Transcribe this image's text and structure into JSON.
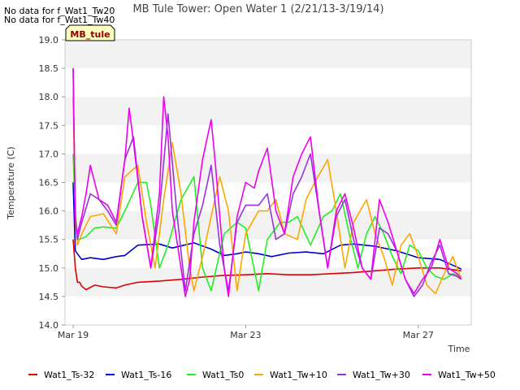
{
  "chart_data": {
    "type": "line",
    "title": "MB Tule Tower: Open Water 1 (2/21/13-3/19/14)",
    "xlabel": "Time",
    "ylabel": "Temperature (C)",
    "ylim": [
      14.0,
      19.0
    ],
    "xlim": [
      0,
      10
    ],
    "yticks": [
      "14.0",
      "14.5",
      "15.0",
      "15.5",
      "16.0",
      "16.5",
      "17.0",
      "17.5",
      "18.0",
      "18.5",
      "19.0"
    ],
    "xticks": [
      {
        "value": 0,
        "label": "Mar 19"
      },
      {
        "value": 4,
        "label": "Mar 23"
      },
      {
        "value": 8,
        "label": "Mar 27"
      }
    ],
    "grid": "horizontal bands",
    "legend_position": "bottom",
    "no_data_notes": [
      "No data for f_Wat1_Tw20",
      "No data for f_Wat1_Tw40"
    ],
    "site_label": "MB_tule",
    "series": [
      {
        "name": "Wat1_Ts-32",
        "color": "#dd0000",
        "x": [
          0.0,
          0.05,
          0.1,
          0.15,
          0.2,
          0.3,
          0.5,
          0.7,
          1.0,
          1.2,
          1.5,
          2.0,
          2.5,
          3.0,
          3.5,
          4.0,
          4.5,
          5.0,
          5.5,
          6.0,
          6.5,
          7.0,
          7.5,
          8.0,
          8.5,
          9.0
        ],
        "y": [
          15.5,
          15.0,
          14.75,
          14.75,
          14.68,
          14.62,
          14.7,
          14.67,
          14.65,
          14.7,
          14.75,
          14.77,
          14.8,
          14.84,
          14.87,
          14.88,
          14.9,
          14.88,
          14.88,
          14.9,
          14.92,
          14.95,
          14.98,
          15.0,
          15.0,
          14.95
        ]
      },
      {
        "name": "Wat1_Ts-16",
        "color": "#0000cc",
        "x": [
          0.0,
          0.05,
          0.1,
          0.2,
          0.4,
          0.7,
          1.0,
          1.2,
          1.5,
          2.0,
          2.3,
          2.8,
          3.2,
          3.5,
          3.8,
          4.0,
          4.3,
          4.6,
          5.0,
          5.4,
          5.8,
          6.2,
          6.5,
          7.0,
          7.5,
          8.0,
          8.5,
          9.0
        ],
        "y": [
          16.5,
          15.3,
          15.25,
          15.15,
          15.18,
          15.15,
          15.2,
          15.22,
          15.4,
          15.42,
          15.35,
          15.44,
          15.33,
          15.22,
          15.25,
          15.28,
          15.25,
          15.2,
          15.26,
          15.28,
          15.25,
          15.4,
          15.42,
          15.38,
          15.3,
          15.18,
          15.15,
          14.98
        ]
      },
      {
        "name": "Wat1_Ts0",
        "color": "#22ee22",
        "x": [
          0.0,
          0.05,
          0.1,
          0.15,
          0.3,
          0.5,
          0.7,
          1.0,
          1.2,
          1.5,
          1.7,
          1.8,
          2.0,
          2.2,
          2.5,
          2.8,
          3.0,
          3.2,
          3.5,
          3.8,
          4.0,
          4.3,
          4.5,
          4.8,
          5.0,
          5.2,
          5.5,
          5.8,
          6.0,
          6.2,
          6.4,
          6.6,
          6.8,
          7.0,
          7.2,
          7.4,
          7.6,
          7.8,
          8.0,
          8.2,
          8.4,
          8.6,
          8.8,
          9.0
        ],
        "y": [
          17.0,
          16.0,
          15.5,
          15.5,
          15.55,
          15.7,
          15.72,
          15.7,
          16.0,
          16.5,
          16.5,
          16.1,
          15.0,
          15.4,
          16.2,
          16.6,
          15.0,
          14.6,
          15.6,
          15.8,
          15.7,
          14.6,
          15.5,
          15.8,
          15.8,
          15.9,
          15.4,
          15.9,
          16.0,
          16.3,
          15.6,
          15.0,
          15.6,
          15.9,
          15.6,
          15.2,
          14.9,
          15.4,
          15.3,
          15.0,
          14.85,
          14.8,
          14.9,
          14.85
        ]
      },
      {
        "name": "Wat1_Tw+10",
        "color": "#ffa500",
        "x": [
          0.0,
          0.05,
          0.1,
          0.2,
          0.4,
          0.7,
          1.0,
          1.2,
          1.5,
          1.7,
          1.9,
          2.1,
          2.3,
          2.5,
          2.7,
          2.8,
          3.0,
          3.2,
          3.4,
          3.6,
          3.8,
          4.0,
          4.3,
          4.5,
          4.7,
          4.9,
          5.2,
          5.4,
          5.6,
          5.9,
          6.1,
          6.3,
          6.5,
          6.8,
          7.0,
          7.2,
          7.4,
          7.6,
          7.8,
          8.0,
          8.2,
          8.4,
          8.6,
          8.8,
          9.0
        ],
        "y": [
          18.0,
          15.8,
          15.4,
          15.6,
          15.9,
          15.95,
          15.6,
          16.6,
          16.8,
          15.8,
          15.0,
          16.2,
          17.2,
          16.3,
          15.0,
          14.6,
          15.2,
          15.9,
          16.6,
          16.0,
          14.6,
          15.6,
          16.0,
          16.0,
          16.2,
          15.6,
          15.5,
          16.2,
          16.5,
          16.9,
          16.0,
          15.0,
          15.8,
          16.2,
          15.6,
          15.2,
          14.7,
          15.4,
          15.6,
          15.2,
          14.7,
          14.55,
          14.9,
          15.2,
          14.8
        ]
      },
      {
        "name": "Wat1_Tw+30",
        "color": "#9933dd",
        "x": [
          0.0,
          0.05,
          0.1,
          0.2,
          0.4,
          0.6,
          0.8,
          1.0,
          1.2,
          1.4,
          1.6,
          1.8,
          2.0,
          2.2,
          2.4,
          2.6,
          2.8,
          3.0,
          3.2,
          3.4,
          3.6,
          3.8,
          4.0,
          4.3,
          4.5,
          4.7,
          4.9,
          5.1,
          5.3,
          5.5,
          5.7,
          5.9,
          6.1,
          6.3,
          6.5,
          6.7,
          6.9,
          7.1,
          7.3,
          7.5,
          7.7,
          7.9,
          8.1,
          8.3,
          8.5,
          8.7,
          8.9,
          9.0
        ],
        "y": [
          18.5,
          15.9,
          15.5,
          15.8,
          16.3,
          16.2,
          16.0,
          15.75,
          16.9,
          17.3,
          15.9,
          15.0,
          16.0,
          17.7,
          16.0,
          14.6,
          15.6,
          16.1,
          16.8,
          15.4,
          14.6,
          15.8,
          16.1,
          16.1,
          16.3,
          15.5,
          15.6,
          16.3,
          16.6,
          17.0,
          16.0,
          15.0,
          15.9,
          16.2,
          15.5,
          15.0,
          14.8,
          15.7,
          15.6,
          15.3,
          14.8,
          14.5,
          14.7,
          15.1,
          15.4,
          14.9,
          14.85,
          14.8
        ]
      },
      {
        "name": "Wat1_Tw+50",
        "color": "#ee00ee",
        "x": [
          0.0,
          0.05,
          0.1,
          0.2,
          0.3,
          0.4,
          0.6,
          0.8,
          1.0,
          1.2,
          1.3,
          1.4,
          1.6,
          1.8,
          2.0,
          2.1,
          2.2,
          2.3,
          2.5,
          2.6,
          2.7,
          2.8,
          3.0,
          3.2,
          3.3,
          3.5,
          3.6,
          3.8,
          4.0,
          4.2,
          4.3,
          4.5,
          4.7,
          4.9,
          5.1,
          5.3,
          5.5,
          5.7,
          5.9,
          6.1,
          6.3,
          6.5,
          6.7,
          6.9,
          7.1,
          7.3,
          7.5,
          7.7,
          7.9,
          8.1,
          8.3,
          8.5,
          8.7,
          8.9,
          9.0
        ],
        "y": [
          18.5,
          15.8,
          15.6,
          15.9,
          16.3,
          16.8,
          16.2,
          16.1,
          15.8,
          16.9,
          17.8,
          17.2,
          15.9,
          15.0,
          16.3,
          18.0,
          17.3,
          16.0,
          15.0,
          14.5,
          14.8,
          15.8,
          16.9,
          17.6,
          16.8,
          15.0,
          14.5,
          15.9,
          16.5,
          16.4,
          16.7,
          17.1,
          16.0,
          15.6,
          16.6,
          17.0,
          17.3,
          16.0,
          15.0,
          16.0,
          16.3,
          15.7,
          15.0,
          14.8,
          16.2,
          15.8,
          15.3,
          14.8,
          14.55,
          14.8,
          15.0,
          15.5,
          15.0,
          14.9,
          14.8
        ]
      }
    ]
  }
}
